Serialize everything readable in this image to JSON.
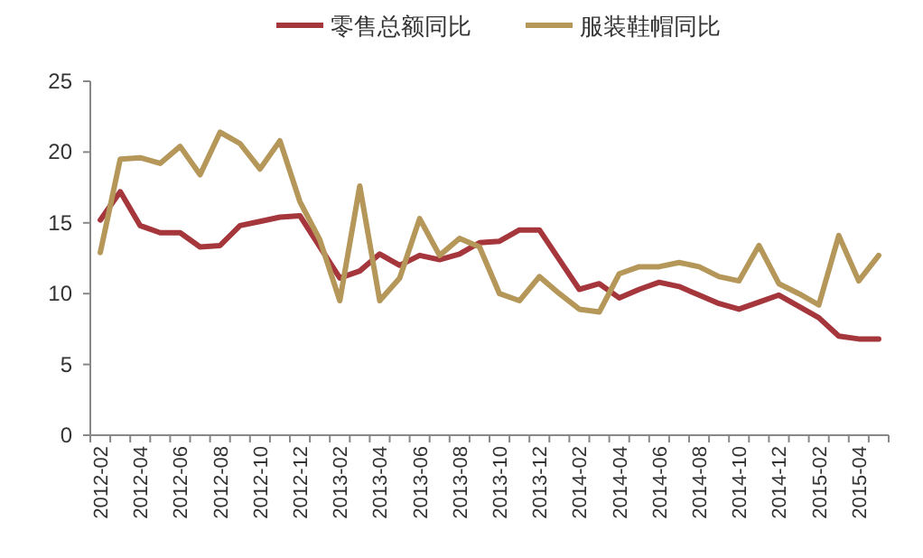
{
  "chart_data": {
    "type": "line",
    "categories": [
      "2012-02",
      null,
      "2012-04",
      null,
      "2012-06",
      null,
      "2012-08",
      null,
      "2012-10",
      null,
      "2012-12",
      null,
      "2013-02",
      null,
      "2013-04",
      null,
      "2013-06",
      null,
      "2013-08",
      null,
      "2013-10",
      null,
      "2013-12",
      null,
      "2014-02",
      null,
      "2014-04",
      null,
      "2014-06",
      null,
      "2014-08",
      null,
      "2014-10",
      null,
      "2014-12",
      null,
      "2015-02",
      null,
      "2015-04",
      null
    ],
    "series": [
      {
        "name": "零售总额同比",
        "color": "#a5373c",
        "values": [
          15.2,
          17.2,
          14.8,
          14.3,
          14.3,
          13.3,
          13.4,
          14.8,
          15.1,
          15.4,
          15.5,
          13.3,
          11.1,
          11.6,
          12.8,
          12.0,
          12.7,
          12.4,
          12.8,
          13.6,
          13.7,
          14.5,
          14.5,
          12.4,
          10.3,
          10.7,
          9.7,
          10.3,
          10.8,
          10.5,
          9.9,
          9.3,
          8.9,
          9.4,
          9.9,
          9.1,
          8.3,
          7.0,
          6.8,
          6.8
        ]
      },
      {
        "name": "服装鞋帽同比",
        "color": "#b5975a",
        "values": [
          12.9,
          19.5,
          19.6,
          19.2,
          20.4,
          18.4,
          21.4,
          20.6,
          18.8,
          20.8,
          16.5,
          13.8,
          9.5,
          17.6,
          9.5,
          11.1,
          15.3,
          12.7,
          13.9,
          13.3,
          10.0,
          9.5,
          11.2,
          10.0,
          8.9,
          8.7,
          11.4,
          11.9,
          11.9,
          12.2,
          11.9,
          11.2,
          10.9,
          13.4,
          10.7,
          10.0,
          9.2,
          14.1,
          10.9,
          12.7
        ]
      }
    ],
    "ylim": [
      0,
      25
    ],
    "yticks": [
      0,
      5,
      10,
      15,
      20,
      25
    ],
    "grid": false,
    "legend": "top",
    "marker": "none",
    "line_style": "solid"
  }
}
